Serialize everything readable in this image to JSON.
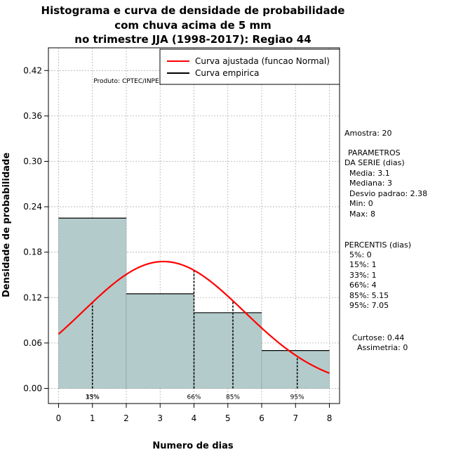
{
  "chart_data": {
    "type": "bar",
    "title": [
      "Histograma e curva de densidade de probabilidade",
      "com chuva acima de 5 mm",
      "no trimestre JJA (1998-2017): Regiao 44"
    ],
    "xlabel": "Numero de dias",
    "ylabel": "Densidade de probabilidade",
    "xlim": [
      -0.3,
      8.3
    ],
    "ylim": [
      -0.02,
      0.45
    ],
    "x_ticks": [
      0,
      1,
      2,
      3,
      4,
      5,
      6,
      7,
      8
    ],
    "x_tick_labels": [
      "0",
      "1",
      "2",
      "3",
      "4",
      "5",
      "6",
      "7",
      "8"
    ],
    "y_ticks": [
      0.0,
      0.06,
      0.12,
      0.18,
      0.24,
      0.3,
      0.36,
      0.42
    ],
    "y_tick_labels": [
      "0.00",
      "0.06",
      "0.12",
      "0.18",
      "0.24",
      "0.30",
      "0.36",
      "0.42"
    ],
    "grid": true,
    "bins": [
      {
        "x0": 0,
        "x1": 2,
        "density": 0.225
      },
      {
        "x0": 2,
        "x1": 4,
        "density": 0.125
      },
      {
        "x0": 4,
        "x1": 6,
        "density": 0.1
      },
      {
        "x0": 6,
        "x1": 8,
        "density": 0.05
      }
    ],
    "series": [
      {
        "name": "Curva ajustada (funcao Normal)",
        "type": "normal",
        "mean": 3.1,
        "sd": 2.38,
        "color": "#ff0000"
      },
      {
        "name": "Curva empirica",
        "type": "step",
        "color": "#000000"
      }
    ],
    "percentile_lines": [
      {
        "x": 1,
        "label": "15%"
      },
      {
        "x": 1,
        "label": "33%"
      },
      {
        "x": 4,
        "label": "66%"
      },
      {
        "x": 5.15,
        "label": "85%"
      },
      {
        "x": 7.05,
        "label": "95%"
      }
    ],
    "legend_position": "top-right",
    "bar_color": "#b4cbcb",
    "annotation": "Produto: CPTEC/INPE"
  },
  "stats_panel": {
    "amostra": "Amostra: 20",
    "params_title_1": "PARAMETROS",
    "params_title_2": "DA SERIE (dias)",
    "media": "Media: 3.1",
    "mediana": "Mediana: 3",
    "desvio": "Desvio padrao: 2.38",
    "min": "Min: 0",
    "max": "Max: 8",
    "percentis_title": "PERCENTIS (dias)",
    "percentis": [
      "5%: 0",
      "15%: 1",
      "33%: 1",
      "66%: 4",
      "85%: 5.15",
      "95%: 7.05"
    ],
    "curtose": "Curtose: 0.44",
    "assimetria": "Assimetria: 0"
  }
}
